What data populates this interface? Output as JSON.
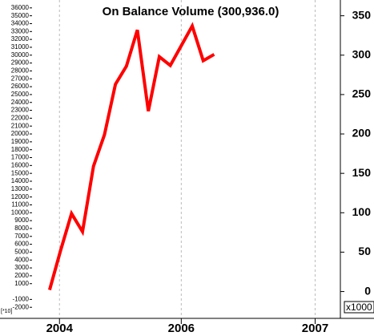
{
  "chart_data": {
    "type": "line",
    "title": "On Balance Volume (300,936.0)",
    "x": [
      0,
      1,
      2,
      3,
      4,
      5,
      6,
      7,
      8,
      9,
      10,
      11,
      12,
      13,
      14,
      15
    ],
    "xlim": [
      -1.6,
      26.5
    ],
    "xticks": [
      {
        "value": 0.9,
        "label": "2004"
      },
      {
        "value": 12,
        "label": "2006"
      },
      {
        "value": 24.2,
        "label": "2007"
      }
    ],
    "series": [
      {
        "name": "On Balance Volume",
        "color": "#ff0000",
        "axis": "y2",
        "values": [
          2,
          52,
          99,
          76,
          159,
          199,
          263,
          286,
          332,
          229,
          298,
          287,
          312,
          337,
          293,
          301
        ]
      }
    ],
    "ylim": [
      -3200,
      37000
    ],
    "yticks": [
      -2000,
      -1000,
      1000,
      2000,
      3000,
      4000,
      5000,
      6000,
      7000,
      8000,
      9000,
      10000,
      11000,
      12000,
      13000,
      14000,
      15000,
      16000,
      17000,
      18000,
      19000,
      20000,
      21000,
      22000,
      23000,
      24000,
      25000,
      26000,
      27000,
      28000,
      29000,
      30000,
      31000,
      32000,
      33000,
      34000,
      35000,
      36000
    ],
    "y_label": "[*10]",
    "y2lim": [
      -32,
      370
    ],
    "y2ticks": [
      0,
      50,
      100,
      150,
      200,
      250,
      300,
      350
    ],
    "y2_label": "x1000",
    "grid": true
  }
}
